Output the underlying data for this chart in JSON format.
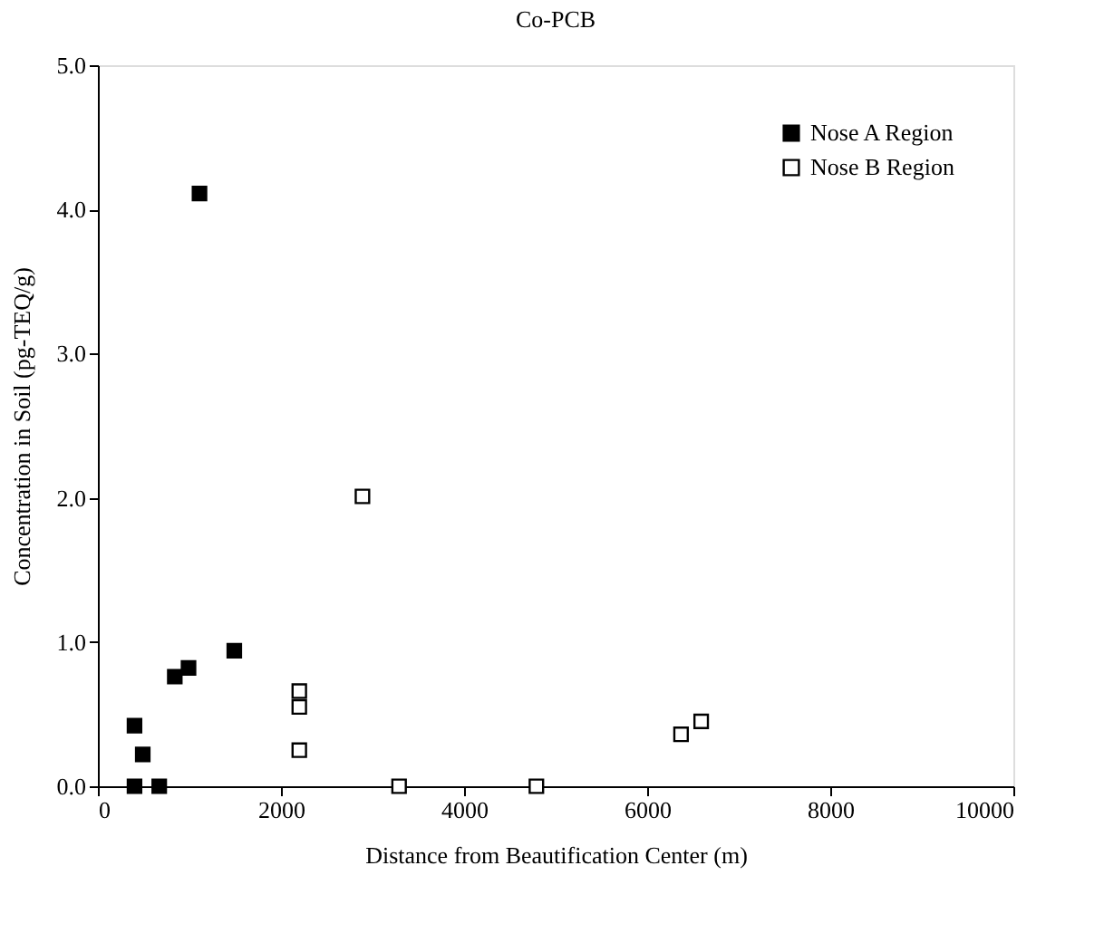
{
  "chart_data": {
    "type": "scatter",
    "title": "Co-PCB",
    "xlabel": "Distance from Beautification Center (m)",
    "ylabel": "Concentration in Soil (pg-TEQ/g)",
    "series": [
      {
        "name": "Nose A Region",
        "color": "#000000",
        "x": [
          400,
          670,
          400,
          490,
          840,
          990,
          1490,
          1110
        ],
        "values": [
          0.0,
          0.0,
          0.42,
          0.22,
          0.76,
          0.82,
          0.94,
          4.11
        ]
      },
      {
        "name": "Nose B Region",
        "color": "#ffffff",
        "x": [
          2200,
          2200,
          2200,
          2890,
          3290,
          4790,
          6370,
          6590
        ],
        "values": [
          0.66,
          0.55,
          0.25,
          2.01,
          0.0,
          0.0,
          0.36,
          0.45
        ]
      }
    ],
    "xlim": [
      0,
      10000
    ],
    "xticks": [
      0,
      2000,
      4000,
      6000,
      8000,
      10000
    ],
    "ylim": [
      0,
      5
    ],
    "yticks": [
      {
        "value": 0,
        "label": "0.0"
      },
      {
        "value": 1,
        "label": "1.0"
      },
      {
        "value": 2,
        "label": "2.0"
      },
      {
        "value": 3,
        "label": "3.0"
      },
      {
        "value": 4,
        "label": "4.0"
      },
      {
        "value": 5,
        "label": "5.0"
      }
    ],
    "marker": "square",
    "grid": false,
    "legend": "top right"
  }
}
